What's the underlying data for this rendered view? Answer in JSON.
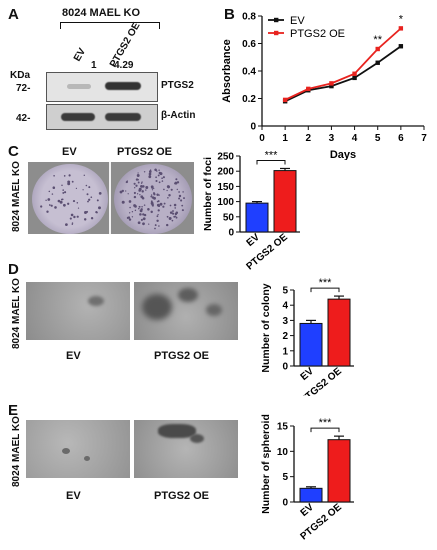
{
  "panel_a": {
    "letter": "A",
    "header": "8024 MAEL KO",
    "lanes": [
      "EV",
      "PTGS2 OE"
    ],
    "ratios": [
      "1",
      "4.29"
    ],
    "kda_label": "KDa",
    "markers": [
      "72-",
      "42-"
    ],
    "proteins": [
      "PTGS2",
      "β-Actin"
    ]
  },
  "panel_b": {
    "letter": "B",
    "significance": [
      "**",
      "*"
    ]
  },
  "panel_c": {
    "letter": "C",
    "side_label": "8024 MAEL KO",
    "image_labels": [
      "EV",
      "PTGS2 OE"
    ],
    "significance": "***"
  },
  "panel_d": {
    "letter": "D",
    "side_label": "8024 MAEL KO",
    "image_labels": [
      "EV",
      "PTGS2 OE"
    ],
    "significance": "***"
  },
  "panel_e": {
    "letter": "E",
    "side_label": "8024 MAEL KO",
    "image_labels": [
      "EV",
      "PTGS2 OE"
    ],
    "significance": "***"
  },
  "colors": {
    "ev": "#111111",
    "ptgs2": "#e8231f",
    "bar_ev": "#1f3fff",
    "bar_ptgs2": "#ee1c1c"
  },
  "chart_data": [
    {
      "id": "B",
      "type": "line",
      "x": [
        1,
        2,
        3,
        4,
        5,
        6
      ],
      "xlabel": "Days",
      "ylabel": "Absorbance",
      "xlim": [
        0,
        7
      ],
      "ylim": [
        0,
        0.8
      ],
      "xticks": [
        "0",
        "1",
        "2",
        "3",
        "4",
        "5",
        "6",
        "7"
      ],
      "yticks": [
        "0",
        "0.2",
        "0.4",
        "0.6",
        "0.8"
      ],
      "legend": "top-left",
      "series": [
        {
          "name": "EV",
          "values": [
            0.18,
            0.26,
            0.29,
            0.35,
            0.46,
            0.58
          ]
        },
        {
          "name": "PTGS2 OE",
          "values": [
            0.19,
            0.27,
            0.31,
            0.38,
            0.56,
            0.71
          ]
        }
      ]
    },
    {
      "id": "C",
      "type": "bar",
      "categories": [
        "EV",
        "PTGS2 OE"
      ],
      "values": [
        95,
        202
      ],
      "errors": [
        5,
        7
      ],
      "ylabel": "Number of foci",
      "ylim": [
        0,
        250
      ],
      "yticks": [
        "0",
        "50",
        "100",
        "150",
        "200",
        "250"
      ]
    },
    {
      "id": "D",
      "type": "bar",
      "categories": [
        "EV",
        "PTGS2 OE"
      ],
      "values": [
        2.8,
        4.4
      ],
      "errors": [
        0.2,
        0.2
      ],
      "ylabel": "Number of colony",
      "ylim": [
        0,
        5
      ],
      "yticks": [
        "0",
        "1",
        "2",
        "3",
        "4",
        "5"
      ]
    },
    {
      "id": "E",
      "type": "bar",
      "categories": [
        "EV",
        "PTGS2 OE"
      ],
      "values": [
        2.7,
        12.3
      ],
      "errors": [
        0.3,
        0.7
      ],
      "ylabel": "Number of spheroid",
      "ylim": [
        0,
        15
      ],
      "yticks": [
        "0",
        "5",
        "10",
        "15"
      ]
    }
  ]
}
